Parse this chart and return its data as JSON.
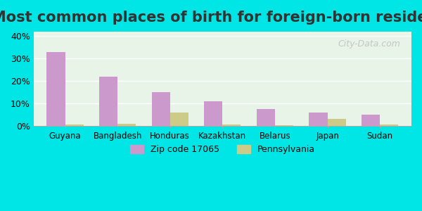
{
  "title": "Most common places of birth for foreign-born residents",
  "categories": [
    "Guyana",
    "Bangladesh",
    "Honduras",
    "Kazakhstan",
    "Belarus",
    "Japan",
    "Sudan"
  ],
  "zip_values": [
    33,
    22,
    15,
    11,
    7.5,
    6,
    5
  ],
  "pa_values": [
    0.8,
    1.0,
    6,
    0.8,
    0.5,
    3.2,
    0.7
  ],
  "zip_color": "#cc99cc",
  "pa_color": "#cccc88",
  "ylim": [
    0,
    42
  ],
  "yticks": [
    0,
    10,
    20,
    30,
    40
  ],
  "ytick_labels": [
    "0%",
    "10%",
    "20%",
    "30%",
    "40%"
  ],
  "legend_zip": "Zip code 17065",
  "legend_pa": "Pennsylvania",
  "background_outer": "#00e5e5",
  "background_inner_top": "#e8f4e8",
  "background_inner_bottom": "#f5f5e8",
  "watermark": "City-Data.com",
  "bar_width": 0.35,
  "title_fontsize": 15
}
